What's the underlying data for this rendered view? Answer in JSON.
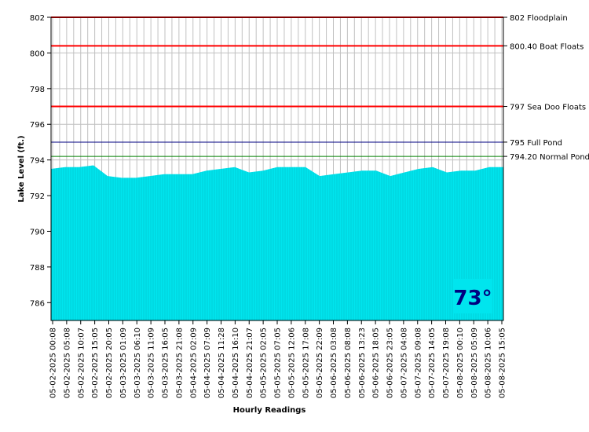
{
  "chart_data": {
    "type": "area",
    "title": "",
    "xlabel": "Hourly Readings",
    "ylabel": "Lake Level (ft.)",
    "ylim": [
      785,
      802
    ],
    "yticks": [
      786,
      788,
      790,
      792,
      794,
      796,
      798,
      800,
      802
    ],
    "grid": true,
    "xtick_labels": [
      "05-02-2025 00:08",
      "05-02-2025 05:08",
      "05-02-2025 10:07",
      "05-02-2025 15:05",
      "05-02-2025 20:05",
      "05-03-2025 01:09",
      "05-03-2025 06:10",
      "05-03-2025 11:09",
      "05-03-2025 16:05",
      "05-03-2025 21:08",
      "05-04-2025 02:09",
      "05-04-2025 07:09",
      "05-04-2025 11:28",
      "05-04-2025 16:10",
      "05-04-2025 21:07",
      "05-05-2025 02:05",
      "05-05-2025 07:05",
      "05-05-2025 12:06",
      "05-05-2025 17:08",
      "05-05-2025 22:09",
      "05-06-2025 03:08",
      "05-06-2025 08:08",
      "05-06-2025 13:23",
      "05-06-2025 18:05",
      "05-06-2025 23:05",
      "05-07-2025 04:08",
      "05-07-2025 09:08",
      "05-07-2025 14:05",
      "05-07-2025 19:08",
      "05-08-2025 00:10",
      "05-08-2025 05:09",
      "05-08-2025 10:06",
      "05-08-2025 15:05"
    ],
    "series": [
      {
        "values": [
          793.5,
          793.6,
          793.6,
          793.7,
          793.1,
          793.0,
          793.0,
          793.1,
          793.2,
          793.2,
          793.2,
          793.4,
          793.5,
          793.6,
          793.3,
          793.4,
          793.6,
          793.6,
          793.6,
          793.1,
          793.2,
          793.3,
          793.4,
          793.4,
          793.1,
          793.3,
          793.5,
          793.6,
          793.3,
          793.4,
          793.4,
          793.6,
          793.6
        ]
      }
    ],
    "reference_lines": [
      {
        "value": 802,
        "label": "802 Floodplain",
        "color": "#ff0000"
      },
      {
        "value": 800.4,
        "label": "800.40 Boat Floats",
        "color": "#ff0000"
      },
      {
        "value": 797,
        "label": "797 Sea Doo Floats",
        "color": "#ff0000"
      },
      {
        "value": 795,
        "label": "795 Full Pond",
        "color": "#000080"
      },
      {
        "value": 794.2,
        "label": "794.20 Normal Pond",
        "color": "#008000"
      }
    ],
    "fill_color": "#00e5ee",
    "badge": {
      "text": "73°",
      "color": "#000080",
      "background": "#00e5ee"
    }
  }
}
